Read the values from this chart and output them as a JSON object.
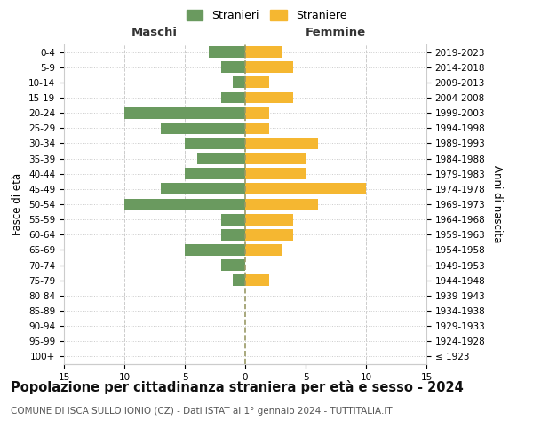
{
  "age_groups": [
    "100+",
    "95-99",
    "90-94",
    "85-89",
    "80-84",
    "75-79",
    "70-74",
    "65-69",
    "60-64",
    "55-59",
    "50-54",
    "45-49",
    "40-44",
    "35-39",
    "30-34",
    "25-29",
    "20-24",
    "15-19",
    "10-14",
    "5-9",
    "0-4"
  ],
  "birth_years": [
    "≤ 1923",
    "1924-1928",
    "1929-1933",
    "1934-1938",
    "1939-1943",
    "1944-1948",
    "1949-1953",
    "1954-1958",
    "1959-1963",
    "1964-1968",
    "1969-1973",
    "1974-1978",
    "1979-1983",
    "1984-1988",
    "1989-1993",
    "1994-1998",
    "1999-2003",
    "2004-2008",
    "2009-2013",
    "2014-2018",
    "2019-2023"
  ],
  "maschi": [
    0,
    0,
    0,
    0,
    0,
    1,
    2,
    5,
    2,
    2,
    10,
    7,
    5,
    4,
    5,
    7,
    10,
    2,
    1,
    2,
    3
  ],
  "femmine": [
    0,
    0,
    0,
    0,
    0,
    2,
    0,
    3,
    4,
    4,
    6,
    10,
    5,
    5,
    6,
    2,
    2,
    4,
    2,
    4,
    3
  ],
  "male_color": "#6a9a5f",
  "female_color": "#f5b731",
  "title": "Popolazione per cittadinanza straniera per età e sesso - 2024",
  "subtitle": "COMUNE DI ISCA SULLO IONIO (CZ) - Dati ISTAT al 1° gennaio 2024 - TUTTITALIA.IT",
  "xlabel_left": "Maschi",
  "xlabel_right": "Femmine",
  "ylabel_left": "Fasce di età",
  "ylabel_right": "Anni di nascita",
  "legend_male": "Stranieri",
  "legend_female": "Straniere",
  "xlim": 15,
  "background_color": "#ffffff",
  "grid_color": "#cccccc",
  "title_fontsize": 10.5,
  "subtitle_fontsize": 7.5,
  "axis_label_fontsize": 8.5,
  "tick_fontsize": 7.5,
  "header_fontsize": 9.5
}
